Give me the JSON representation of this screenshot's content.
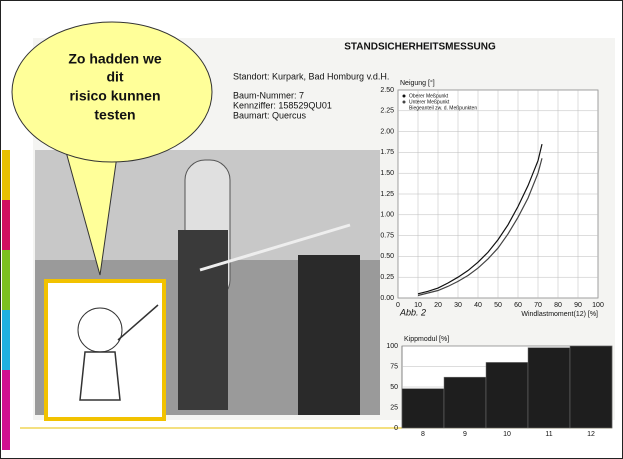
{
  "bubble": {
    "lines": [
      "Zo hadden we",
      "dit",
      "risico kunnen",
      "testen"
    ]
  },
  "document": {
    "title": "STANDSICHERHEITSMESSUNG",
    "location": "Standort: Kurpark, Bad Homburg v.d.H.",
    "details": [
      "Baum-Nummer: 7",
      "Kennziffer: 158529QU01",
      "Baumart: Quercus"
    ]
  },
  "chart_data": [
    {
      "type": "line",
      "title": "Neigung [°]",
      "xlabel": "Windlastmoment(12) [%]",
      "annotation": "Abb. 2",
      "x": [
        10,
        15,
        20,
        25,
        30,
        35,
        40,
        45,
        50,
        55,
        60,
        65,
        70,
        72
      ],
      "series": [
        {
          "name": "Oberer Meßpunkt",
          "color": "#111111",
          "values": [
            0.05,
            0.08,
            0.12,
            0.18,
            0.25,
            0.33,
            0.43,
            0.55,
            0.7,
            0.88,
            1.1,
            1.35,
            1.65,
            1.85
          ]
        },
        {
          "name": "Unterer Meßpunkt",
          "color": "#444444",
          "values": [
            0.03,
            0.06,
            0.09,
            0.14,
            0.2,
            0.27,
            0.36,
            0.47,
            0.6,
            0.77,
            0.97,
            1.2,
            1.5,
            1.68
          ]
        }
      ],
      "legend_extra": "Biegeanteil zw. d. Meßpunkten",
      "xlim": [
        0,
        100
      ],
      "xticks": [
        0,
        10,
        20,
        30,
        40,
        50,
        60,
        70,
        80,
        90,
        100
      ],
      "ylim": [
        0,
        2.5
      ],
      "yticks": [
        {
          "value": 0,
          "label": "0.00"
        },
        {
          "value": 0.25,
          "label": "0.25"
        },
        {
          "value": 0.5,
          "label": "0.50"
        },
        {
          "value": 0.75,
          "label": "0.75"
        },
        {
          "value": 1,
          "label": "1.00"
        },
        {
          "value": 1.25,
          "label": "1.25"
        },
        {
          "value": 1.5,
          "label": "1.50"
        },
        {
          "value": 1.75,
          "label": "1.75"
        },
        {
          "value": 2,
          "label": "2.00"
        },
        {
          "value": 2.25,
          "label": "2.25"
        },
        {
          "value": 2.5,
          "label": "2.50"
        }
      ],
      "grid": true
    },
    {
      "type": "bar",
      "title": "Kippmodul [%]",
      "categories": [
        "8",
        "9",
        "10",
        "11",
        "12"
      ],
      "values": [
        48,
        62,
        80,
        98,
        100
      ],
      "color": "#1e1e1e",
      "ylim": [
        0,
        100
      ],
      "yticks": [
        0,
        25,
        50,
        75,
        100
      ],
      "grid": true
    }
  ]
}
